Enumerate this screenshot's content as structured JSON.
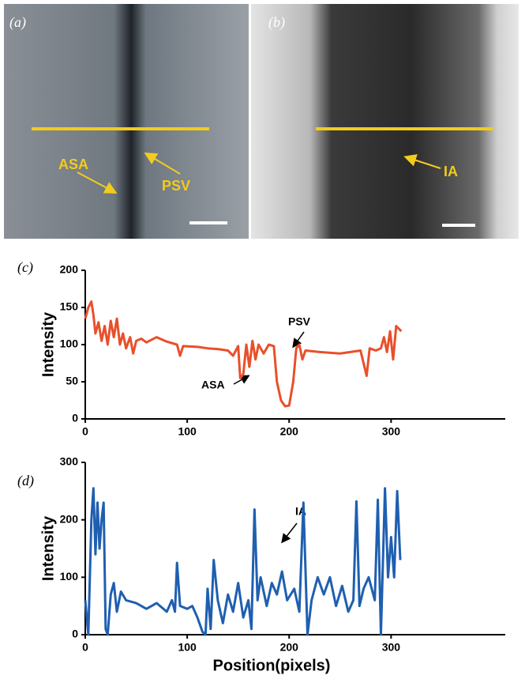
{
  "images": [
    {
      "label": "(a)",
      "annotations": [
        "ASA",
        "PSV"
      ]
    },
    {
      "label": "(b)",
      "annotations": [
        "IA"
      ]
    }
  ],
  "chart_data": [
    {
      "type": "line",
      "label": "(c)",
      "ylabel": "Intensity",
      "color": "#e8502a",
      "annotations": [
        "ASA",
        "PSV"
      ],
      "xlim": [
        0,
        412
      ],
      "xticks": [
        0,
        100,
        200,
        300
      ],
      "ylim": [
        0,
        200
      ],
      "yticks": [
        0,
        50,
        100,
        150,
        200
      ],
      "x": [
        0,
        3,
        6,
        8,
        10,
        13,
        16,
        19,
        22,
        25,
        28,
        31,
        34,
        37,
        40,
        44,
        47,
        50,
        55,
        60,
        70,
        80,
        90,
        93,
        96,
        110,
        120,
        130,
        140,
        145,
        150,
        152,
        155,
        158,
        161,
        164,
        167,
        170,
        175,
        180,
        185,
        188,
        192,
        196,
        200,
        204,
        207,
        210,
        213,
        216,
        230,
        250,
        270,
        273,
        276,
        279,
        285,
        290,
        293,
        296,
        299,
        302,
        305,
        310
      ],
      "values": [
        135,
        150,
        158,
        140,
        115,
        130,
        105,
        125,
        100,
        132,
        110,
        135,
        100,
        115,
        95,
        110,
        88,
        105,
        108,
        103,
        110,
        104,
        100,
        85,
        98,
        97,
        95,
        94,
        92,
        85,
        98,
        55,
        60,
        100,
        70,
        105,
        80,
        100,
        88,
        100,
        98,
        50,
        25,
        17,
        18,
        50,
        95,
        100,
        80,
        92,
        90,
        88,
        92,
        75,
        58,
        95,
        92,
        95,
        110,
        90,
        118,
        80,
        125,
        118
      ]
    },
    {
      "type": "line",
      "label": "(d)",
      "ylabel": "Intensity",
      "xlabel": "Position(pixels)",
      "color": "#1f5fb0",
      "annotations": [
        "IA"
      ],
      "xlim": [
        0,
        412
      ],
      "xticks": [
        0,
        100,
        200,
        300
      ],
      "ylim": [
        0,
        300
      ],
      "yticks": [
        0,
        100,
        200,
        300
      ],
      "x": [
        0,
        3,
        6,
        8,
        10,
        12,
        14,
        16,
        18,
        20,
        22,
        25,
        28,
        31,
        35,
        40,
        50,
        60,
        70,
        80,
        85,
        88,
        90,
        93,
        100,
        105,
        110,
        115,
        118,
        120,
        123,
        126,
        130,
        135,
        140,
        145,
        150,
        155,
        160,
        163,
        166,
        169,
        172,
        178,
        183,
        188,
        193,
        198,
        205,
        210,
        214,
        218,
        222,
        228,
        234,
        240,
        246,
        252,
        258,
        263,
        266,
        269,
        273,
        278,
        284,
        287,
        290,
        294,
        297,
        300,
        303,
        306,
        309
      ],
      "values": [
        60,
        0,
        200,
        255,
        140,
        230,
        150,
        200,
        230,
        10,
        0,
        70,
        90,
        40,
        75,
        60,
        55,
        45,
        55,
        40,
        60,
        40,
        125,
        50,
        45,
        50,
        30,
        5,
        0,
        80,
        10,
        130,
        60,
        20,
        70,
        40,
        90,
        30,
        60,
        10,
        218,
        60,
        100,
        50,
        90,
        70,
        110,
        60,
        80,
        40,
        230,
        0,
        60,
        100,
        70,
        100,
        50,
        85,
        40,
        60,
        232,
        50,
        80,
        100,
        60,
        235,
        0,
        255,
        100,
        170,
        100,
        250,
        130
      ]
    }
  ]
}
